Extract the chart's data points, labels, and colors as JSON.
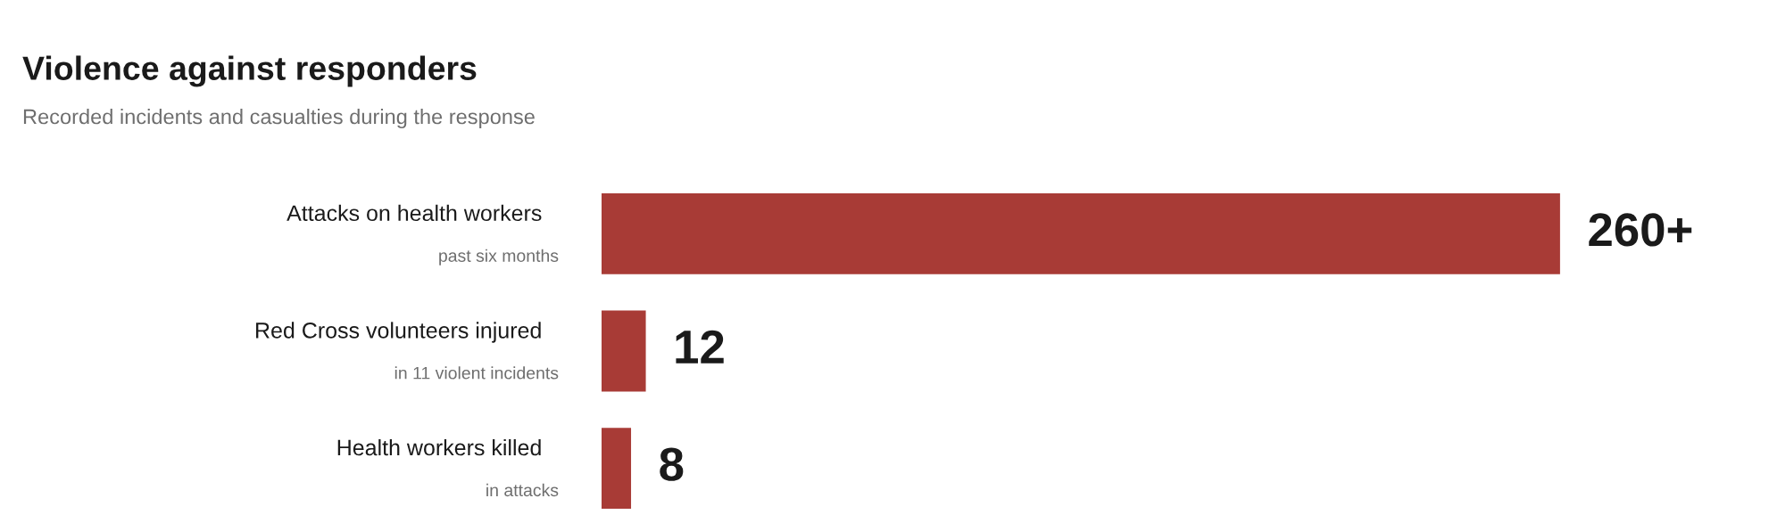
{
  "chart_data": {
    "type": "bar",
    "orientation": "horizontal",
    "title": "Violence against responders",
    "subtitle": "Recorded incidents and casualties during the response",
    "categories": [
      "Attacks on health workers\npast six months",
      "Red Cross volunteers injured\nin 11 violent incidents",
      "Health workers killed\nin attacks"
    ],
    "values": [
      260,
      12,
      8
    ],
    "color": "#a83b36",
    "value_labels": [
      "260+",
      "12",
      "8"
    ]
  }
}
